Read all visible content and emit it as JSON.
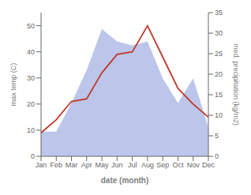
{
  "chart_data": {
    "type": "line",
    "xlabel": "date (month)",
    "ylabel": "max temp (C)",
    "y2label": "med. precipitation (kg/m2)",
    "categories": [
      "Jan",
      "Feb",
      "Mar",
      "Apr",
      "May",
      "Jun",
      "Jul",
      "Aug",
      "Sep",
      "Oct",
      "Nov",
      "Dec"
    ],
    "series": [
      {
        "name": "max temp",
        "type": "line",
        "color": "#c0392b",
        "values": [
          9,
          14,
          21,
          22,
          32,
          39,
          40,
          50,
          38,
          26,
          20,
          15
        ]
      },
      {
        "name": "precipitation",
        "type": "area",
        "axis": "y2",
        "color": "#b0bce8",
        "values": [
          6,
          6,
          13,
          21,
          31,
          28,
          27,
          28,
          19,
          13,
          19,
          7
        ]
      }
    ],
    "ylim": [
      0,
      55
    ],
    "yticks": [
      0,
      10,
      20,
      30,
      40,
      50
    ],
    "y2lim": [
      0,
      35
    ],
    "y2ticks": [
      0,
      5,
      10,
      15,
      20,
      25,
      30,
      35
    ],
    "grid": false
  }
}
